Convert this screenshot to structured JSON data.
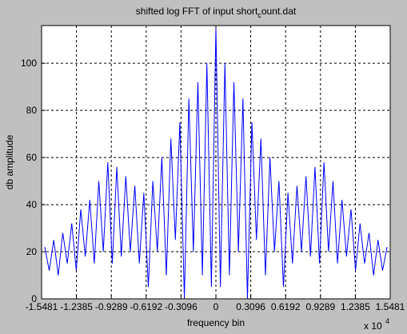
{
  "chart_data": {
    "type": "line",
    "title_parts": [
      "shifted log FFT of input short",
      "c",
      "ount.dat"
    ],
    "x_label": "frequency bin",
    "y_label": "db amplitude",
    "x_exponent_base": "x 10",
    "x_exponent_power": "4",
    "xlim": [
      -1.5481,
      1.5481
    ],
    "xticks": [
      -1.5481,
      -1.2385,
      -0.9289,
      -0.6192,
      -0.3096,
      0,
      0.3096,
      0.6192,
      0.9289,
      1.2385,
      1.5481
    ],
    "ylim": [
      0,
      116
    ],
    "yticks": [
      0,
      20,
      40,
      60,
      80,
      100
    ],
    "grid": true,
    "x": [
      -1.52,
      -1.48,
      -1.44,
      -1.4,
      -1.36,
      -1.32,
      -1.28,
      -1.24,
      -1.2,
      -1.16,
      -1.12,
      -1.08,
      -1.04,
      -1,
      -0.96,
      -0.92,
      -0.88,
      -0.84,
      -0.8,
      -0.76,
      -0.72,
      -0.68,
      -0.64,
      -0.6,
      -0.56,
      -0.52,
      -0.48,
      -0.44,
      -0.4,
      -0.36,
      -0.32,
      -0.28,
      -0.24,
      -0.2,
      -0.16,
      -0.12,
      -0.08,
      -0.04,
      0,
      0.04,
      0.08,
      0.12,
      0.16,
      0.2,
      0.24,
      0.28,
      0.32,
      0.36,
      0.4,
      0.44,
      0.48,
      0.52,
      0.56,
      0.6,
      0.64,
      0.68,
      0.72,
      0.76,
      0.8,
      0.84,
      0.88,
      0.92,
      0.96,
      1,
      1.04,
      1.08,
      1.12,
      1.16,
      1.2,
      1.24,
      1.28,
      1.32,
      1.36,
      1.4,
      1.44,
      1.48,
      1.52
    ],
    "series": [
      {
        "color": "#0000ff",
        "values": [
          22,
          12,
          25,
          10,
          28,
          15,
          32,
          12,
          38,
          18,
          42,
          15,
          50,
          20,
          58,
          15,
          56,
          18,
          52,
          20,
          48,
          15,
          45,
          5,
          50,
          20,
          60,
          10,
          68,
          25,
          75,
          0,
          85,
          20,
          92,
          10,
          100,
          5,
          115,
          5,
          100,
          10,
          92,
          20,
          85,
          0,
          75,
          25,
          68,
          10,
          60,
          20,
          50,
          5,
          45,
          15,
          48,
          20,
          52,
          18,
          56,
          15,
          58,
          20,
          50,
          15,
          42,
          18,
          38,
          12,
          32,
          15,
          28,
          10,
          25,
          12,
          22
        ]
      }
    ]
  }
}
